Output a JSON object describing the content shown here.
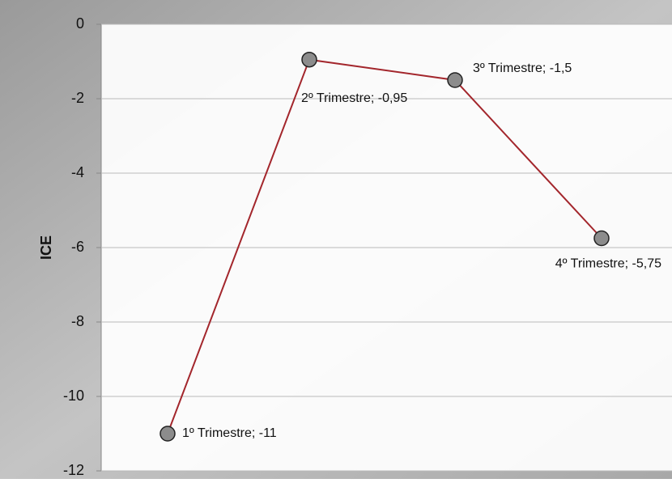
{
  "chart_data": {
    "type": "line",
    "y_label": "ICE",
    "values": [
      -11,
      -0.95,
      -1.5,
      -5.75
    ],
    "value_labels": [
      "1º Trimestre; -11",
      "2º Trimestre; -0,95",
      "3º Trimestre; -1,5",
      "4º Trimestre; -5,75"
    ],
    "color": "#a3262c",
    "marker_color": "#8c8c8c",
    "ylim": [
      -12,
      0
    ],
    "yticks": [
      0,
      -2,
      -4,
      -6,
      -8,
      -10,
      -12
    ],
    "grid": true
  }
}
